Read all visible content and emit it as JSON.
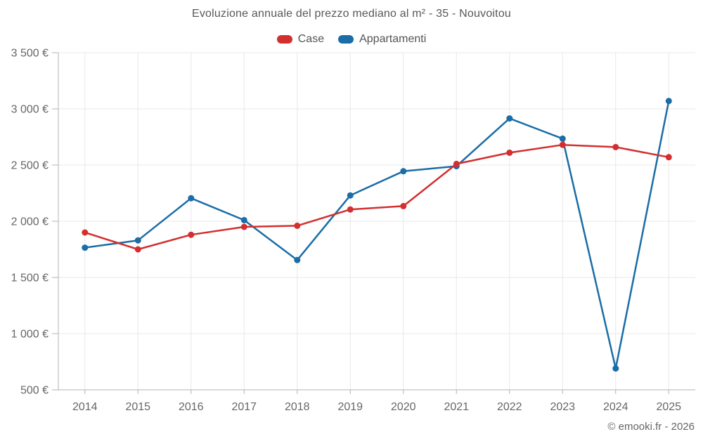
{
  "title": "Evoluzione annuale del prezzo mediano al m² - 35 - Nouvoitou",
  "copyright": "© emooki.fr - 2026",
  "legend": [
    {
      "label": "Case",
      "color": "#d32f2f"
    },
    {
      "label": "Appartamenti",
      "color": "#1a6da6"
    }
  ],
  "colors": {
    "grid": "#e8e8e8",
    "axis": "#b3b3b3",
    "tick": "#b3b3b3",
    "axis_text": "#666666",
    "title_text": "#58585b"
  },
  "chart_data": {
    "type": "line",
    "title": "Evoluzione annuale del prezzo mediano al m² - 35 - Nouvoitou",
    "x": [
      "2014",
      "2015",
      "2016",
      "2017",
      "2018",
      "2019",
      "2020",
      "2021",
      "2022",
      "2023",
      "2024",
      "2025"
    ],
    "series": [
      {
        "name": "Case",
        "color": "#d32f2f",
        "values": [
          1900,
          1750,
          1880,
          1950,
          1960,
          2105,
          2135,
          2510,
          2610,
          2680,
          2660,
          2570
        ]
      },
      {
        "name": "Appartamenti",
        "color": "#1a6da6",
        "values": [
          1765,
          1830,
          2205,
          2010,
          1655,
          2230,
          2445,
          2490,
          2915,
          2735,
          690,
          3070
        ]
      }
    ],
    "xlabel": "",
    "ylabel": "",
    "ylim": [
      500,
      3500
    ],
    "yticks": [
      500,
      1000,
      1500,
      2000,
      2500,
      3000,
      3500
    ],
    "ytick_suffix": " €",
    "grid": true,
    "legend_position": "top"
  }
}
